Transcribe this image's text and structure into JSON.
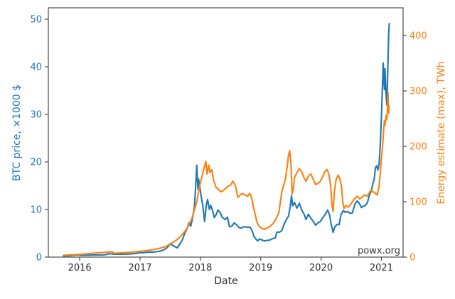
{
  "chart_data": {
    "type": "line",
    "title": "",
    "xlabel": "Date",
    "ylabel_left": "BTC price, ×1000 $",
    "ylabel_right": "Energy estimate (max), TWh",
    "watermark": "powx.org",
    "grid": false,
    "legend_position": "none",
    "xlim": [
      2015.48,
      2021.36
    ],
    "ylim_left": [
      0,
      52.4
    ],
    "ylim_right": [
      0,
      450
    ],
    "xticks": [
      2016,
      2017,
      2018,
      2019,
      2020,
      2021
    ],
    "yticks_left": [
      0,
      10,
      20,
      30,
      40,
      50
    ],
    "yticks_right": [
      0,
      100,
      200,
      300,
      400
    ],
    "colors": {
      "btc_line": "#1f77b4",
      "energy_line": "#ff7f0e",
      "axis": "#4a4a4a",
      "tick_text": "#2e2e2e",
      "watermark": "#3a3a3a",
      "background": "#ffffff"
    },
    "series": [
      {
        "name": "BTC price, ×1000 $",
        "axis": "left",
        "color_key": "btc_line",
        "points": [
          [
            2015.73,
            0.24
          ],
          [
            2015.78,
            0.27
          ],
          [
            2015.84,
            0.31
          ],
          [
            2015.88,
            0.33
          ],
          [
            2015.92,
            0.42
          ],
          [
            2015.96,
            0.46
          ],
          [
            2016.0,
            0.43
          ],
          [
            2016.04,
            0.38
          ],
          [
            2016.08,
            0.4
          ],
          [
            2016.15,
            0.42
          ],
          [
            2016.22,
            0.43
          ],
          [
            2016.3,
            0.44
          ],
          [
            2016.38,
            0.45
          ],
          [
            2016.44,
            0.52
          ],
          [
            2016.48,
            0.68
          ],
          [
            2016.52,
            0.67
          ],
          [
            2016.56,
            0.63
          ],
          [
            2016.62,
            0.6
          ],
          [
            2016.7,
            0.61
          ],
          [
            2016.78,
            0.63
          ],
          [
            2016.85,
            0.68
          ],
          [
            2016.92,
            0.75
          ],
          [
            2016.97,
            0.85
          ],
          [
            2017.0,
            0.97
          ],
          [
            2017.04,
            0.89
          ],
          [
            2017.08,
            0.95
          ],
          [
            2017.13,
            1.05
          ],
          [
            2017.18,
            1.08
          ],
          [
            2017.22,
            1.04
          ],
          [
            2017.28,
            1.15
          ],
          [
            2017.33,
            1.25
          ],
          [
            2017.38,
            1.45
          ],
          [
            2017.42,
            1.7
          ],
          [
            2017.46,
            2.1
          ],
          [
            2017.5,
            2.8
          ],
          [
            2017.54,
            2.5
          ],
          [
            2017.58,
            2.2
          ],
          [
            2017.62,
            1.95
          ],
          [
            2017.66,
            2.8
          ],
          [
            2017.7,
            3.6
          ],
          [
            2017.74,
            5.0
          ],
          [
            2017.78,
            6.0
          ],
          [
            2017.81,
            7.2
          ],
          [
            2017.84,
            6.5
          ],
          [
            2017.87,
            8.2
          ],
          [
            2017.9,
            10.5
          ],
          [
            2017.92,
            14.5
          ],
          [
            2017.94,
            19.3
          ],
          [
            2017.95,
            16.5
          ],
          [
            2017.96,
            14.3
          ],
          [
            2017.97,
            16.4
          ],
          [
            2017.99,
            14.8
          ],
          [
            2018.01,
            13.0
          ],
          [
            2018.04,
            10.8
          ],
          [
            2018.07,
            7.5
          ],
          [
            2018.1,
            11.0
          ],
          [
            2018.12,
            12.1
          ],
          [
            2018.15,
            10.0
          ],
          [
            2018.17,
            10.9
          ],
          [
            2018.2,
            9.9
          ],
          [
            2018.23,
            8.3
          ],
          [
            2018.26,
            8.9
          ],
          [
            2018.29,
            9.9
          ],
          [
            2018.33,
            9.3
          ],
          [
            2018.36,
            8.4
          ],
          [
            2018.41,
            7.9
          ],
          [
            2018.45,
            8.4
          ],
          [
            2018.48,
            6.4
          ],
          [
            2018.52,
            6.5
          ],
          [
            2018.56,
            7.2
          ],
          [
            2018.6,
            6.8
          ],
          [
            2018.64,
            6.2
          ],
          [
            2018.68,
            6.1
          ],
          [
            2018.72,
            6.4
          ],
          [
            2018.76,
            6.3
          ],
          [
            2018.8,
            6.3
          ],
          [
            2018.83,
            6.2
          ],
          [
            2018.86,
            5.5
          ],
          [
            2018.89,
            4.3
          ],
          [
            2018.92,
            3.8
          ],
          [
            2018.95,
            3.4
          ],
          [
            2018.98,
            3.8
          ],
          [
            2019.02,
            3.6
          ],
          [
            2019.06,
            3.4
          ],
          [
            2019.1,
            3.5
          ],
          [
            2019.15,
            3.6
          ],
          [
            2019.2,
            3.9
          ],
          [
            2019.24,
            4.0
          ],
          [
            2019.27,
            5.3
          ],
          [
            2019.31,
            5.2
          ],
          [
            2019.35,
            5.6
          ],
          [
            2019.39,
            7.0
          ],
          [
            2019.43,
            8.0
          ],
          [
            2019.46,
            8.6
          ],
          [
            2019.49,
            10.7
          ],
          [
            2019.51,
            12.9
          ],
          [
            2019.53,
            10.8
          ],
          [
            2019.56,
            11.5
          ],
          [
            2019.6,
            10.3
          ],
          [
            2019.64,
            11.3
          ],
          [
            2019.68,
            9.9
          ],
          [
            2019.72,
            9.0
          ],
          [
            2019.75,
            7.9
          ],
          [
            2019.79,
            9.0
          ],
          [
            2019.83,
            8.2
          ],
          [
            2019.87,
            7.5
          ],
          [
            2019.91,
            6.7
          ],
          [
            2019.95,
            7.2
          ],
          [
            2019.99,
            7.5
          ],
          [
            2020.03,
            8.3
          ],
          [
            2020.07,
            9.0
          ],
          [
            2020.11,
            9.9
          ],
          [
            2020.14,
            8.9
          ],
          [
            2020.17,
            6.8
          ],
          [
            2020.2,
            5.2
          ],
          [
            2020.23,
            6.4
          ],
          [
            2020.27,
            6.9
          ],
          [
            2020.3,
            6.8
          ],
          [
            2020.33,
            8.9
          ],
          [
            2020.37,
            9.8
          ],
          [
            2020.4,
            9.4
          ],
          [
            2020.44,
            9.6
          ],
          [
            2020.48,
            9.2
          ],
          [
            2020.52,
            9.3
          ],
          [
            2020.56,
            11.1
          ],
          [
            2020.6,
            11.8
          ],
          [
            2020.63,
            11.4
          ],
          [
            2020.67,
            10.4
          ],
          [
            2020.7,
            10.7
          ],
          [
            2020.73,
            10.8
          ],
          [
            2020.77,
            11.5
          ],
          [
            2020.8,
            13.0
          ],
          [
            2020.83,
            13.8
          ],
          [
            2020.86,
            15.5
          ],
          [
            2020.88,
            16.3
          ],
          [
            2020.9,
            18.7
          ],
          [
            2020.92,
            19.2
          ],
          [
            2020.94,
            18.3
          ],
          [
            2020.96,
            19.4
          ],
          [
            2020.98,
            23.2
          ],
          [
            2021.0,
            29.0
          ],
          [
            2021.01,
            33.0
          ],
          [
            2021.03,
            40.8
          ],
          [
            2021.04,
            37.5
          ],
          [
            2021.05,
            35.2
          ],
          [
            2021.06,
            39.6
          ],
          [
            2021.08,
            33.8
          ],
          [
            2021.09,
            32.0
          ],
          [
            2021.1,
            35.8
          ],
          [
            2021.12,
            46.4
          ],
          [
            2021.13,
            49.1
          ]
        ]
      },
      {
        "name": "Energy estimate (max), TWh",
        "axis": "right",
        "color_key": "energy_line",
        "points": [
          [
            2015.73,
            3.2
          ],
          [
            2015.8,
            3.6
          ],
          [
            2015.88,
            4.1
          ],
          [
            2015.96,
            4.7
          ],
          [
            2016.04,
            5.3
          ],
          [
            2016.12,
            6.0
          ],
          [
            2016.2,
            6.7
          ],
          [
            2016.28,
            7.4
          ],
          [
            2016.36,
            8.1
          ],
          [
            2016.44,
            8.7
          ],
          [
            2016.5,
            9.2
          ],
          [
            2016.54,
            9.5
          ],
          [
            2016.57,
            6.8
          ],
          [
            2016.62,
            7.2
          ],
          [
            2016.7,
            7.7
          ],
          [
            2016.78,
            8.3
          ],
          [
            2016.86,
            8.9
          ],
          [
            2016.94,
            9.7
          ],
          [
            2017.0,
            10.4
          ],
          [
            2017.08,
            11.4
          ],
          [
            2017.16,
            12.6
          ],
          [
            2017.24,
            14.0
          ],
          [
            2017.32,
            15.8
          ],
          [
            2017.4,
            18.0
          ],
          [
            2017.46,
            21.0
          ],
          [
            2017.52,
            25.0
          ],
          [
            2017.58,
            29.0
          ],
          [
            2017.64,
            34.0
          ],
          [
            2017.7,
            41.0
          ],
          [
            2017.76,
            49.0
          ],
          [
            2017.81,
            58.0
          ],
          [
            2017.86,
            70.0
          ],
          [
            2017.9,
            85.0
          ],
          [
            2017.94,
            100.0
          ],
          [
            2017.98,
            125.0
          ],
          [
            2018.02,
            143.0
          ],
          [
            2018.06,
            160.0
          ],
          [
            2018.09,
            173.0
          ],
          [
            2018.11,
            150.0
          ],
          [
            2018.14,
            166.0
          ],
          [
            2018.16,
            152.0
          ],
          [
            2018.19,
            158.0
          ],
          [
            2018.22,
            138.0
          ],
          [
            2018.26,
            126.0
          ],
          [
            2018.3,
            122.0
          ],
          [
            2018.34,
            118.0
          ],
          [
            2018.38,
            120.0
          ],
          [
            2018.42,
            124.0
          ],
          [
            2018.46,
            128.0
          ],
          [
            2018.5,
            130.0
          ],
          [
            2018.54,
            137.0
          ],
          [
            2018.58,
            129.0
          ],
          [
            2018.62,
            108.0
          ],
          [
            2018.66,
            112.0
          ],
          [
            2018.7,
            115.0
          ],
          [
            2018.74,
            112.0
          ],
          [
            2018.78,
            110.0
          ],
          [
            2018.82,
            115.0
          ],
          [
            2018.85,
            107.0
          ],
          [
            2018.88,
            90.0
          ],
          [
            2018.91,
            76.0
          ],
          [
            2018.94,
            62.0
          ],
          [
            2018.98,
            55.0
          ],
          [
            2019.02,
            52.0
          ],
          [
            2019.06,
            50.0
          ],
          [
            2019.1,
            52.0
          ],
          [
            2019.15,
            55.0
          ],
          [
            2019.2,
            60.0
          ],
          [
            2019.25,
            68.0
          ],
          [
            2019.3,
            80.0
          ],
          [
            2019.35,
            118.0
          ],
          [
            2019.41,
            141.0
          ],
          [
            2019.44,
            165.0
          ],
          [
            2019.46,
            184.0
          ],
          [
            2019.48,
            192.0
          ],
          [
            2019.5,
            170.0
          ],
          [
            2019.52,
            114.0
          ],
          [
            2019.54,
            122.0
          ],
          [
            2019.56,
            144.0
          ],
          [
            2019.6,
            152.0
          ],
          [
            2019.64,
            160.0
          ],
          [
            2019.68,
            154.0
          ],
          [
            2019.72,
            143.0
          ],
          [
            2019.75,
            137.0
          ],
          [
            2019.79,
            146.0
          ],
          [
            2019.83,
            150.0
          ],
          [
            2019.87,
            140.0
          ],
          [
            2019.91,
            131.0
          ],
          [
            2019.95,
            133.0
          ],
          [
            2019.99,
            137.0
          ],
          [
            2020.03,
            146.0
          ],
          [
            2020.07,
            156.0
          ],
          [
            2020.1,
            158.0
          ],
          [
            2020.13,
            150.0
          ],
          [
            2020.16,
            128.0
          ],
          [
            2020.18,
            95.0
          ],
          [
            2020.2,
            82.0
          ],
          [
            2020.22,
            118.0
          ],
          [
            2020.25,
            140.0
          ],
          [
            2020.28,
            148.0
          ],
          [
            2020.31,
            142.0
          ],
          [
            2020.34,
            128.0
          ],
          [
            2020.36,
            100.0
          ],
          [
            2020.38,
            88.0
          ],
          [
            2020.41,
            93.0
          ],
          [
            2020.45,
            90.0
          ],
          [
            2020.5,
            96.0
          ],
          [
            2020.55,
            105.0
          ],
          [
            2020.6,
            110.0
          ],
          [
            2020.64,
            105.0
          ],
          [
            2020.68,
            108.0
          ],
          [
            2020.72,
            112.0
          ],
          [
            2020.76,
            110.0
          ],
          [
            2020.8,
            116.0
          ],
          [
            2020.83,
            121.0
          ],
          [
            2020.86,
            118.0
          ],
          [
            2020.9,
            115.0
          ],
          [
            2020.93,
            112.0
          ],
          [
            2020.96,
            126.0
          ],
          [
            2020.98,
            150.0
          ],
          [
            2021.0,
            176.0
          ],
          [
            2021.02,
            200.0
          ],
          [
            2021.04,
            232.0
          ],
          [
            2021.05,
            246.0
          ],
          [
            2021.06,
            238.0
          ],
          [
            2021.08,
            256.0
          ],
          [
            2021.09,
            248.0
          ],
          [
            2021.1,
            266.0
          ],
          [
            2021.11,
            296.0
          ],
          [
            2021.12,
            260.0
          ],
          [
            2021.13,
            272.0
          ]
        ]
      }
    ]
  }
}
